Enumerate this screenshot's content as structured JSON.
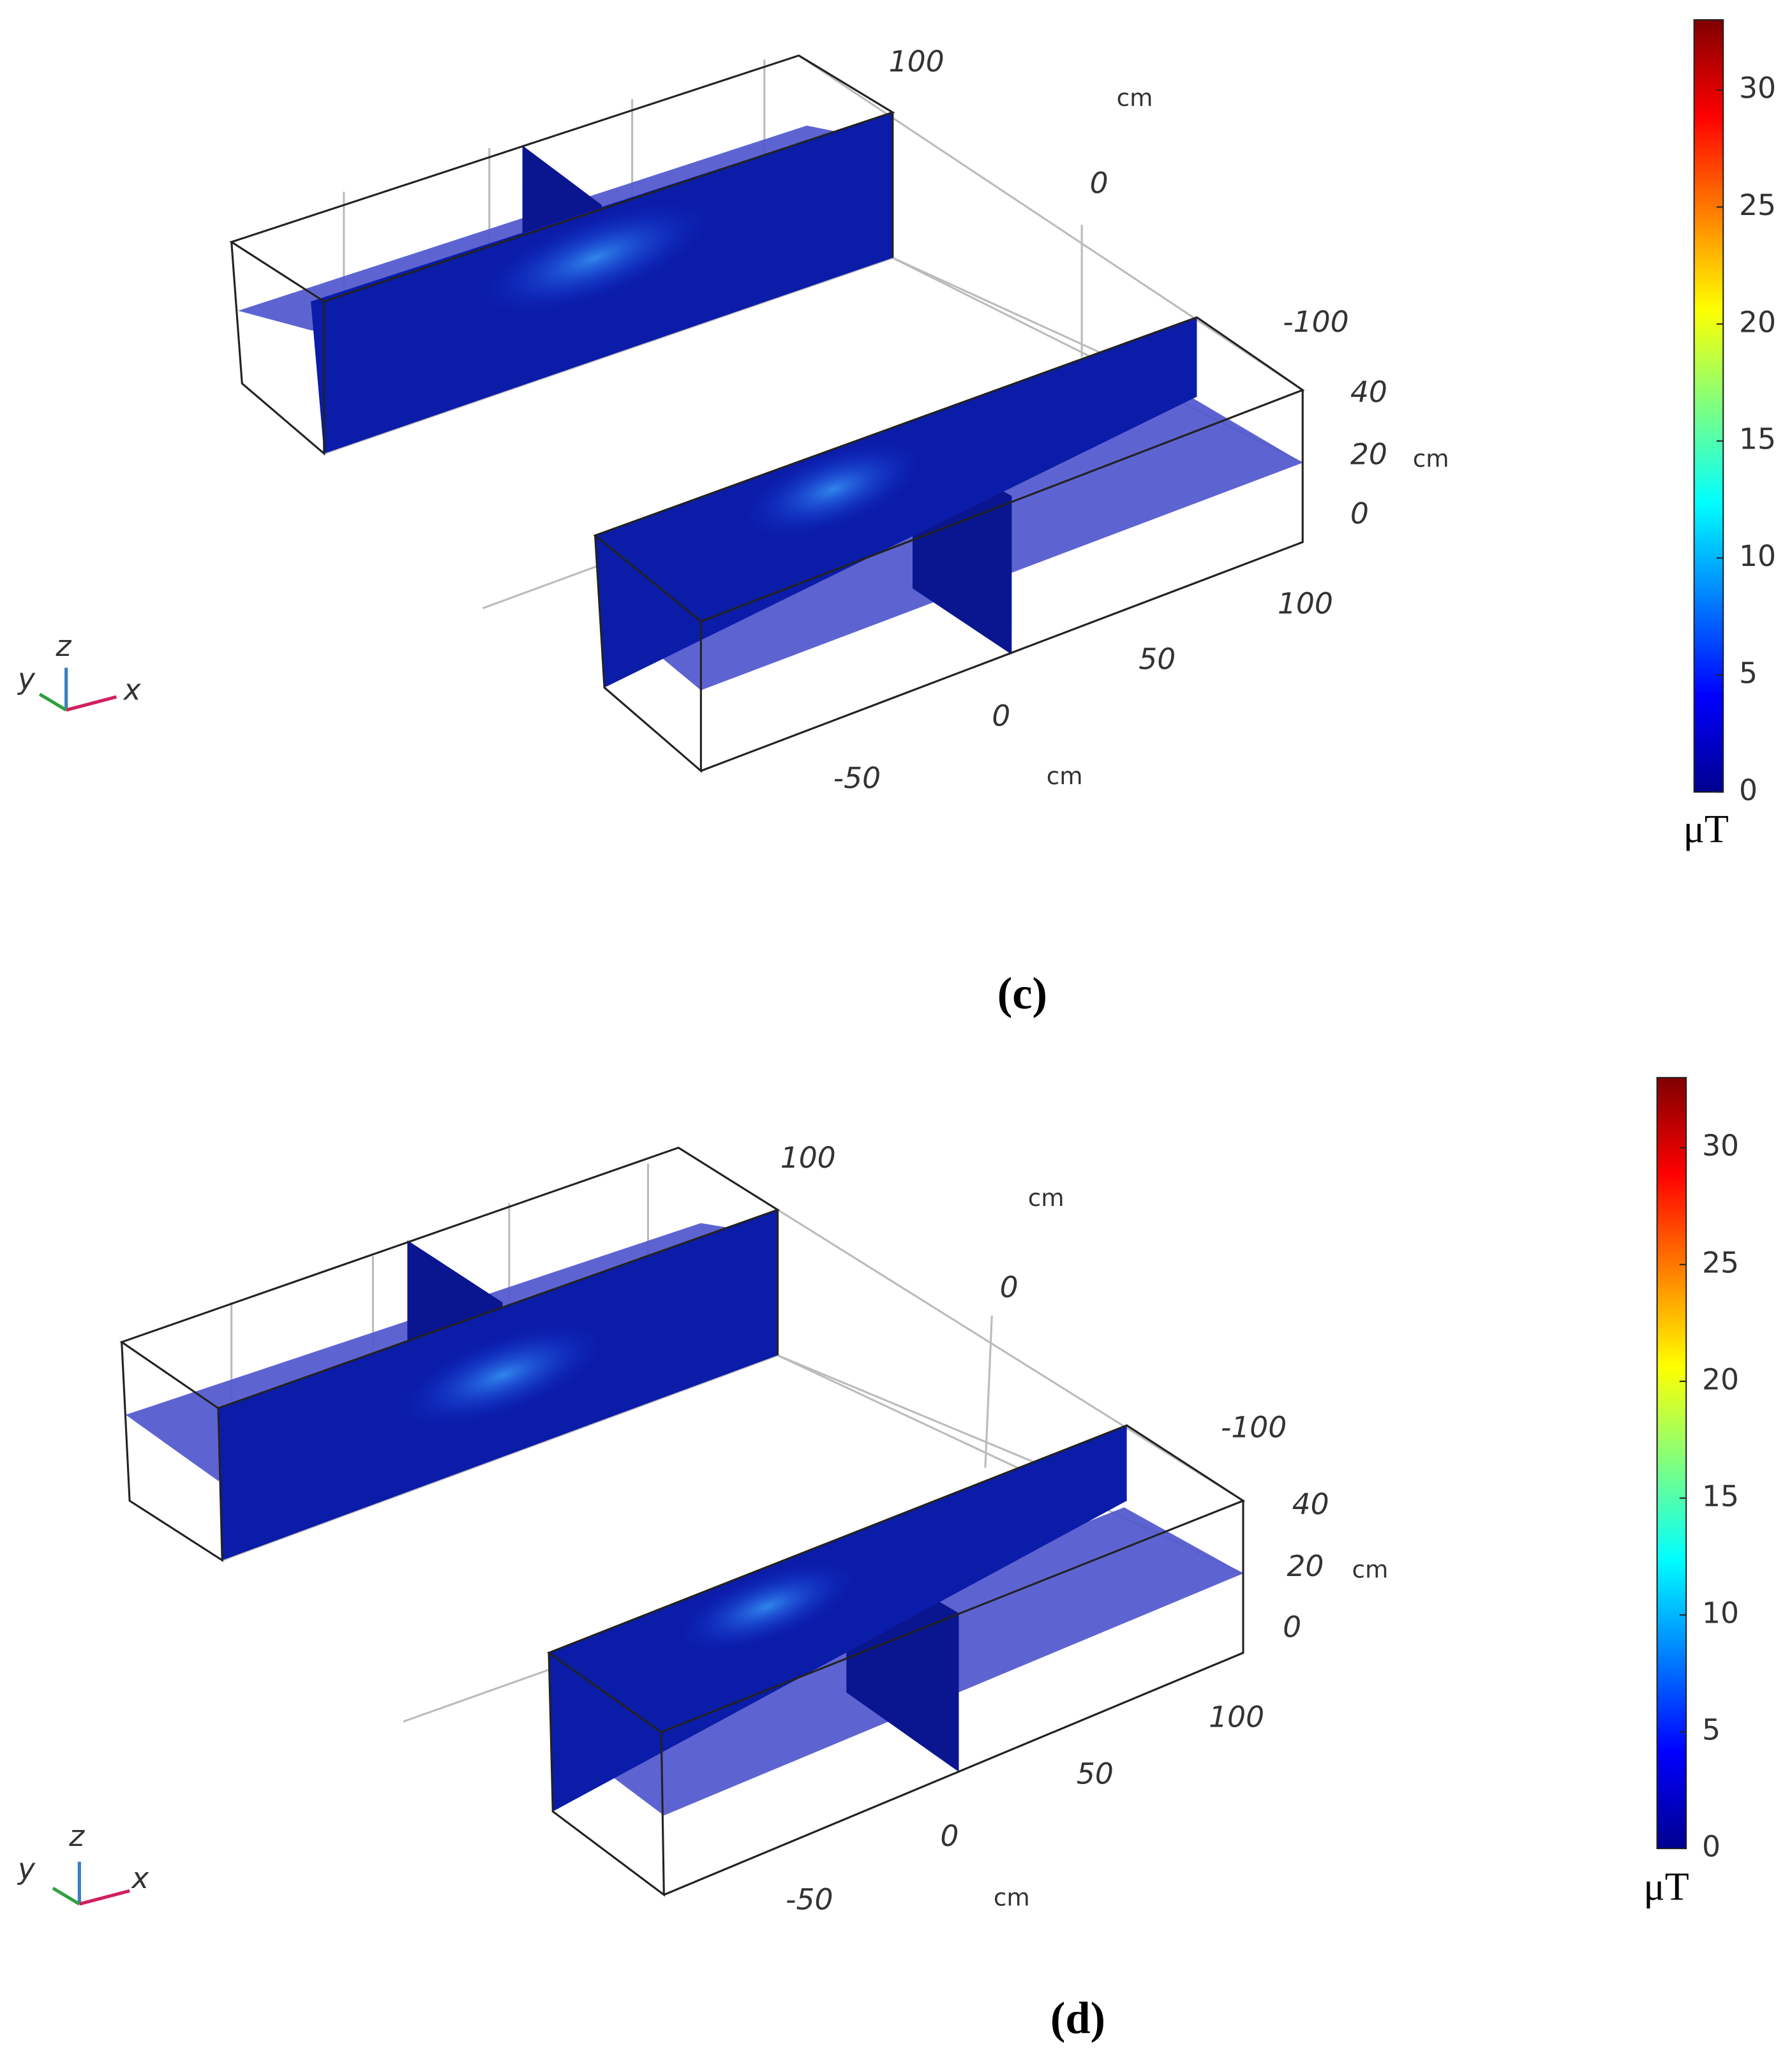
{
  "panels": [
    {
      "label": "(c)",
      "colorbar": {
        "lim": [
          0,
          33
        ],
        "ticks": [
          0,
          5,
          10,
          15,
          20,
          25,
          30
        ],
        "unit": "μT"
      },
      "axes": {
        "y": {
          "ticks": [
            100,
            0,
            -100
          ],
          "unit": "cm"
        },
        "z": {
          "ticks": [
            40,
            20,
            0
          ],
          "unit": "cm"
        },
        "x": {
          "ticks": [
            100,
            50,
            0,
            -50
          ],
          "unit": "cm"
        }
      },
      "triad": [
        "y",
        "z",
        "x"
      ]
    },
    {
      "label": "(d)",
      "colorbar": {
        "lim": [
          0,
          33
        ],
        "ticks": [
          0,
          5,
          10,
          15,
          20,
          25,
          30
        ],
        "unit": "μT"
      },
      "axes": {
        "y": {
          "ticks": [
            100,
            0,
            -100
          ],
          "unit": "cm"
        },
        "z": {
          "ticks": [
            40,
            20,
            0
          ],
          "unit": "cm"
        },
        "x": {
          "ticks": [
            100,
            50,
            0,
            -50
          ],
          "unit": "cm"
        }
      },
      "triad": [
        "y",
        "z",
        "x"
      ]
    }
  ]
}
